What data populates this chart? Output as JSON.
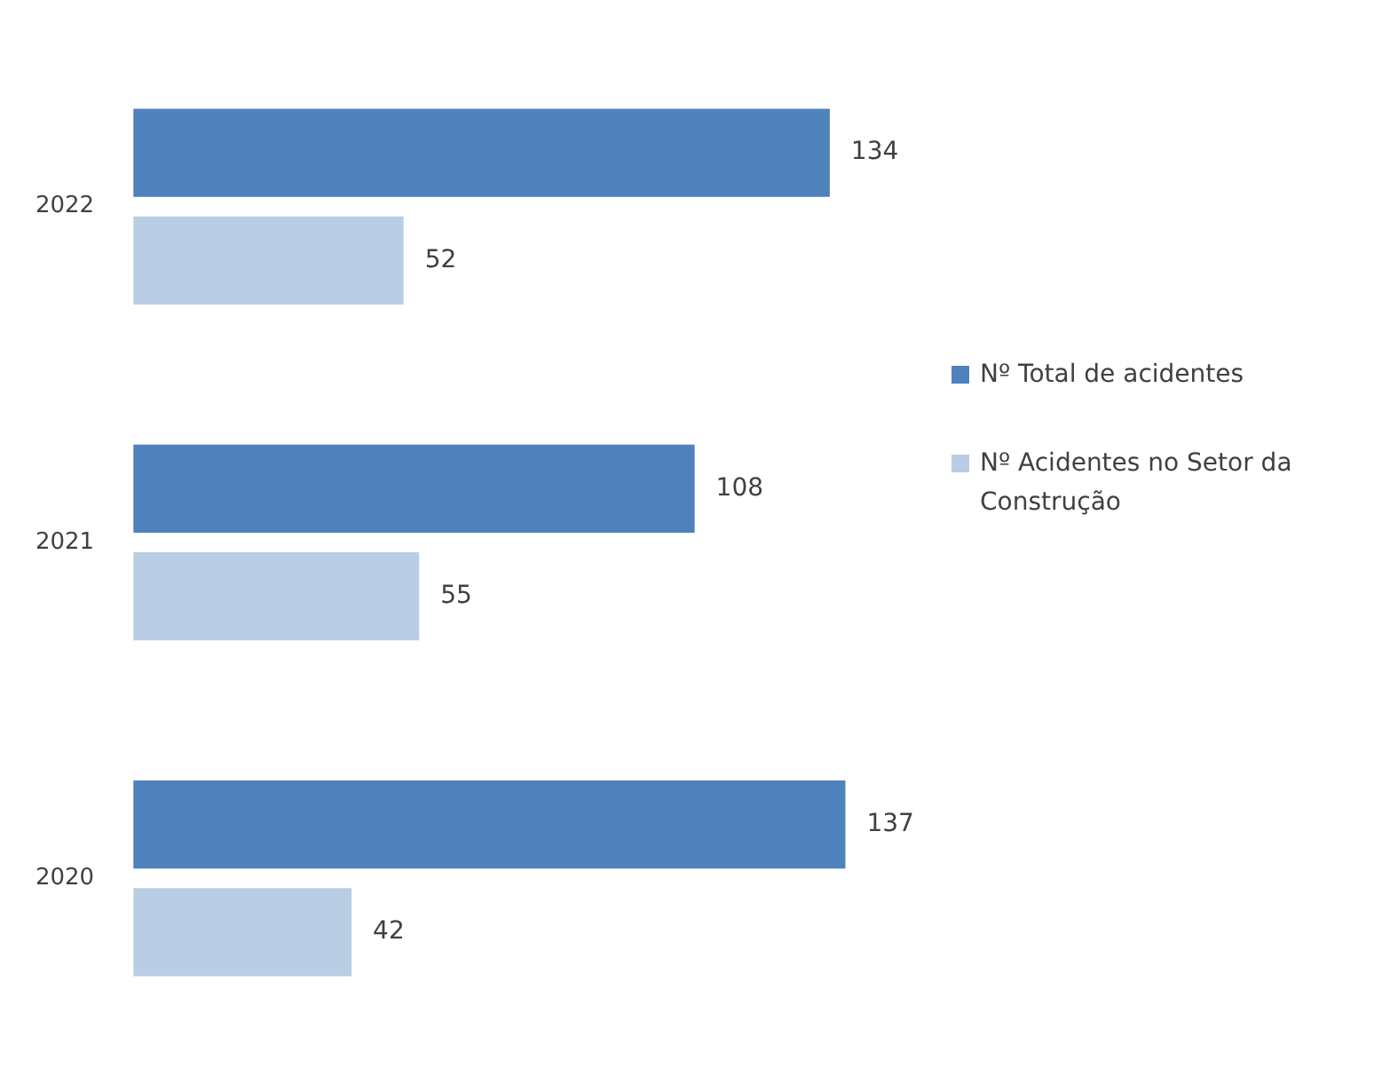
{
  "chart_data": {
    "type": "bar",
    "orientation": "horizontal",
    "categories": [
      "2022",
      "2021",
      "2020"
    ],
    "series": [
      {
        "name": "Nº Total de acidentes",
        "color": "#4f81bd",
        "values": [
          134,
          108,
          137
        ]
      },
      {
        "name": "Nº Acidentes no Setor da Construção",
        "color": "#b9cde5",
        "values": [
          52,
          55,
          42
        ]
      }
    ],
    "data_labels": true,
    "legend": "right"
  }
}
